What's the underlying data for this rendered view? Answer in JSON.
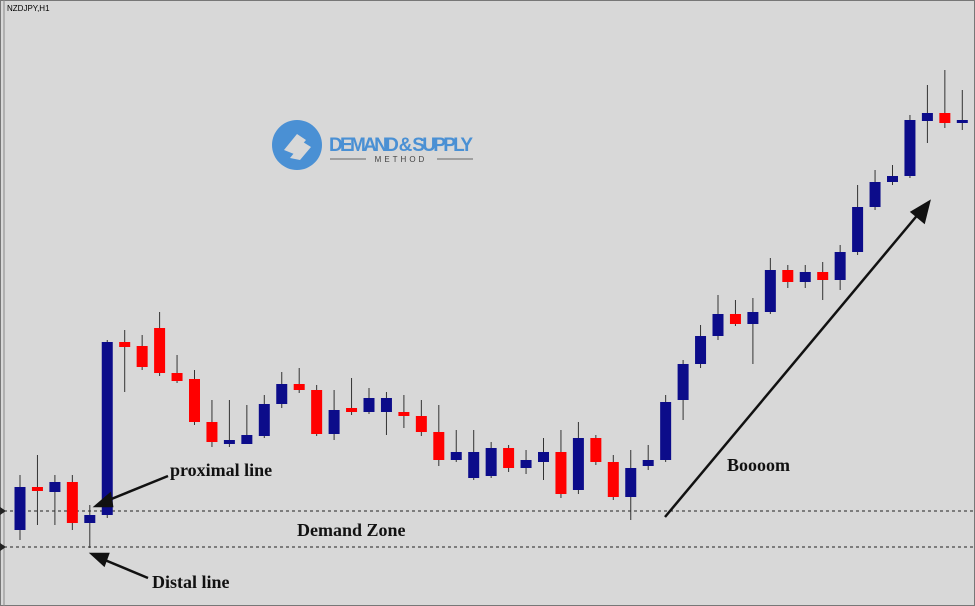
{
  "chart_data": {
    "type": "candlestick",
    "title": "NZDJPY,H1",
    "logo": {
      "name": "DEMAND & SUPPLY",
      "tagline": "METHOD"
    },
    "ylim": [
      0,
      600
    ],
    "up_color": "#0c0c8a",
    "down_color": "#ff0000",
    "open": [
      70,
      113,
      108,
      118,
      77,
      85,
      258,
      254,
      272,
      227,
      221,
      178,
      156,
      156,
      164,
      196,
      216,
      210,
      166,
      192,
      188,
      188,
      188,
      184,
      168,
      140,
      122,
      124,
      152,
      132,
      138,
      148,
      110,
      162,
      138,
      103,
      134,
      140,
      200,
      236,
      264,
      286,
      276,
      288,
      330,
      318,
      328,
      320,
      348,
      393,
      418,
      424,
      479,
      487,
      477
    ],
    "high": [
      125,
      145,
      125,
      125,
      95,
      260,
      270,
      265,
      288,
      245,
      230,
      200,
      200,
      195,
      205,
      228,
      232,
      215,
      210,
      222,
      212,
      208,
      205,
      200,
      195,
      170,
      170,
      158,
      155,
      150,
      162,
      170,
      178,
      165,
      145,
      150,
      155,
      205,
      240,
      275,
      305,
      300,
      302,
      342,
      335,
      335,
      338,
      355,
      415,
      430,
      435,
      485,
      515,
      530,
      510
    ],
    "low": [
      60,
      75,
      75,
      70,
      52,
      82,
      208,
      230,
      224,
      217,
      175,
      153,
      153,
      160,
      162,
      192,
      207,
      164,
      160,
      185,
      186,
      165,
      172,
      164,
      134,
      138,
      120,
      122,
      128,
      126,
      120,
      102,
      106,
      135,
      100,
      80,
      130,
      138,
      180,
      232,
      260,
      274,
      236,
      286,
      312,
      312,
      300,
      310,
      345,
      390,
      415,
      422,
      457,
      472,
      470
    ],
    "close": [
      113,
      109,
      118,
      77,
      85,
      258,
      253,
      233,
      227,
      219,
      178,
      158,
      160,
      165,
      196,
      216,
      210,
      166,
      190,
      188,
      202,
      202,
      184,
      168,
      140,
      148,
      148,
      152,
      132,
      140,
      148,
      106,
      162,
      138,
      103,
      132,
      140,
      198,
      236,
      264,
      286,
      276,
      288,
      330,
      318,
      328,
      320,
      348,
      393,
      418,
      424,
      480,
      487,
      477,
      480
    ],
    "zone_lines": [
      89,
      53
    ],
    "annotations": [
      "proximal line",
      "Demand Zone",
      "Distal line",
      "Boooom"
    ]
  }
}
